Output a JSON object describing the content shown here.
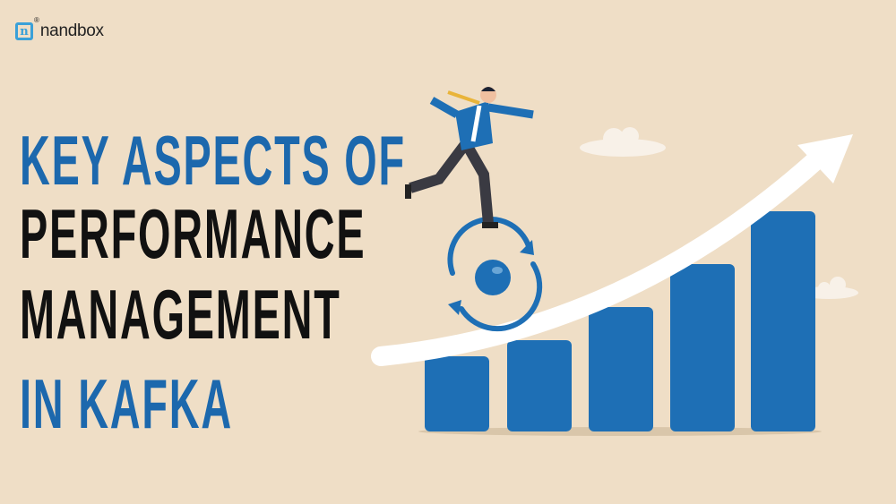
{
  "logo": {
    "mark": "n",
    "name": "nandbox",
    "registered": "®"
  },
  "title": {
    "line1": "KEY ASPECTS OF",
    "line2": "PERFORMANCE",
    "line3": "MANAGEMENT",
    "line4": "IN KAFKA"
  },
  "colors": {
    "background": "#efdec6",
    "accent_blue": "#1c68ad",
    "text_dark": "#111111",
    "bar_blue": "#1e6fb5",
    "arrow": "#ffffff"
  },
  "illustration": {
    "icons": [
      "businessman-running-icon",
      "refresh-cycle-icon",
      "growth-bar-chart-icon",
      "upward-arrow-icon",
      "cloud-icon"
    ]
  }
}
